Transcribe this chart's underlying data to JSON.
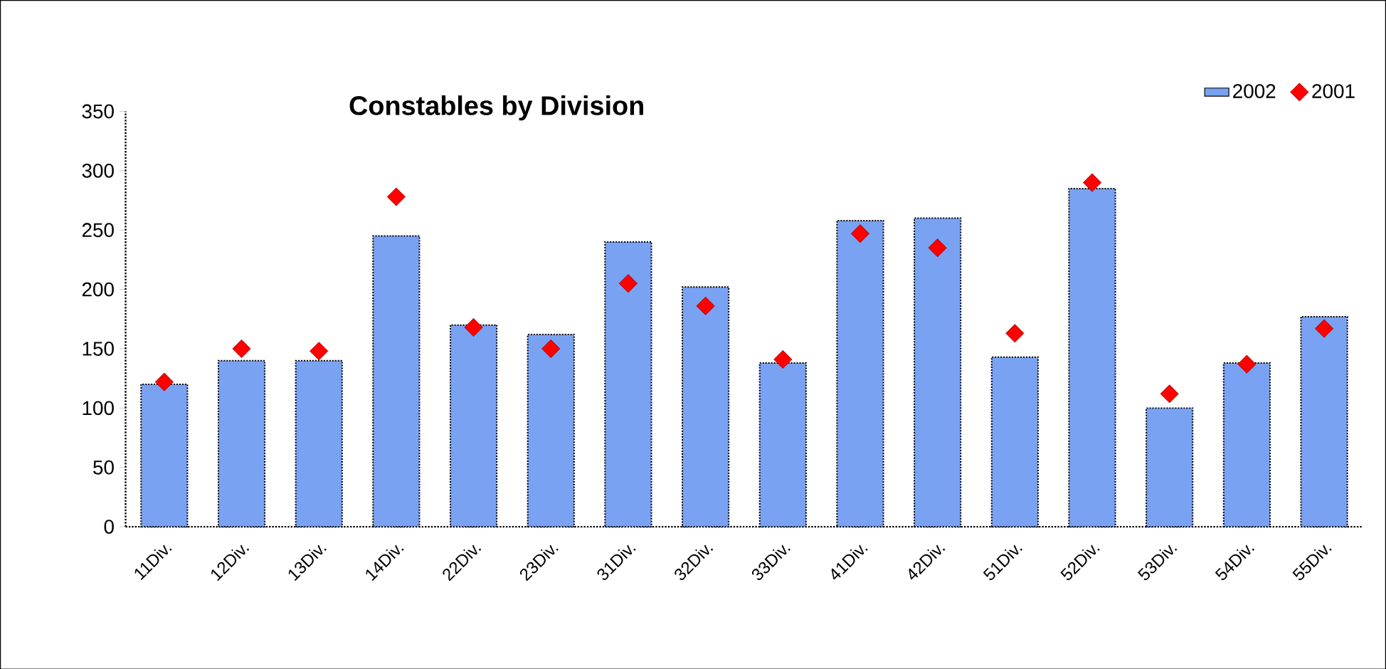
{
  "chart_data": {
    "type": "bar",
    "title": "Constables by Division",
    "categories": [
      "11Div.",
      "12Div.",
      "13Div.",
      "14Div.",
      "22Div.",
      "23Div.",
      "31Div.",
      "32Div.",
      "33Div.",
      "41Div.",
      "42Div.",
      "51Div.",
      "52Div.",
      "53Div.",
      "54Div.",
      "55Div."
    ],
    "series": [
      {
        "name": "2002",
        "color": "#7aa2f2",
        "values": [
          120,
          140,
          140,
          245,
          170,
          162,
          240,
          202,
          138,
          258,
          260,
          143,
          285,
          100,
          138,
          177
        ]
      },
      {
        "name": "2001",
        "type": "scatter",
        "color": "#ff0000",
        "marker": "diamond",
        "values": [
          122,
          150,
          148,
          278,
          168,
          150,
          205,
          186,
          141,
          247,
          235,
          163,
          290,
          112,
          137,
          167
        ]
      }
    ],
    "ylim": [
      0,
      350
    ],
    "yticks": [
      0,
      50,
      100,
      150,
      200,
      250,
      300,
      350
    ],
    "grid": false,
    "legend": "top right"
  }
}
